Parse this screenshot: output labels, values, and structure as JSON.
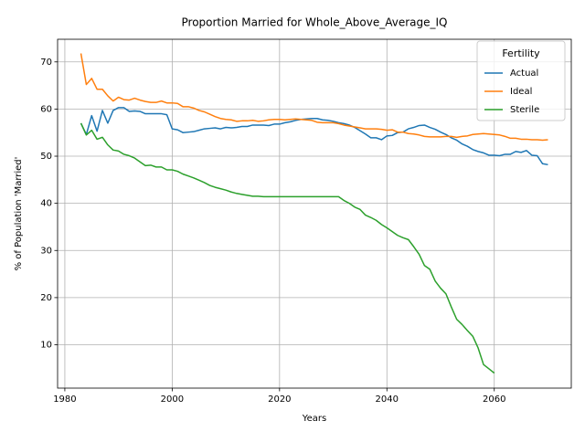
{
  "chart_data": {
    "type": "line",
    "title": "Proportion Married for Whole_Above_Average_IQ",
    "xlabel": "Years",
    "ylabel": "% of Population 'Married'",
    "legend_title": "Fertility",
    "legend": "upper right",
    "grid": true,
    "xlim": [
      1978.65,
      2074.35
    ],
    "xticks": [
      1980,
      2000,
      2020,
      2040,
      2060
    ],
    "ylim": [
      0.8,
      74.8
    ],
    "yticks": [
      10,
      20,
      30,
      40,
      50,
      60,
      70
    ],
    "x": [
      1983,
      1984,
      1985,
      1986,
      1987,
      1988,
      1989,
      1990,
      1991,
      1992,
      1993,
      1994,
      1995,
      1996,
      1997,
      1998,
      1999,
      2000,
      2001,
      2002,
      2003,
      2004,
      2005,
      2006,
      2007,
      2008,
      2009,
      2010,
      2011,
      2012,
      2013,
      2014,
      2015,
      2016,
      2017,
      2018,
      2019,
      2020,
      2021,
      2022,
      2023,
      2024,
      2025,
      2026,
      2027,
      2028,
      2029,
      2030,
      2031,
      2032,
      2033,
      2034,
      2035,
      2036,
      2037,
      2038,
      2039,
      2040,
      2041,
      2042,
      2043,
      2044,
      2045,
      2046,
      2047,
      2048,
      2049,
      2050,
      2051,
      2052,
      2053,
      2054,
      2055,
      2056,
      2057,
      2058,
      2059,
      2060,
      2061,
      2062,
      2063,
      2064,
      2065,
      2066,
      2067,
      2068,
      2069,
      2070
    ],
    "series": [
      {
        "name": "Actual",
        "color": "#1f77b4",
        "values": [
          57,
          54.6,
          58.6,
          55.3,
          59.7,
          57.0,
          59.7,
          60.3,
          60.3,
          59.5,
          59.6,
          59.5,
          59.0,
          59.0,
          59.0,
          59.0,
          58.8,
          55.8,
          55.6,
          55.0,
          55.1,
          55.2,
          55.5,
          55.8,
          55.9,
          56.0,
          55.8,
          56.1,
          56.0,
          56.1,
          56.3,
          56.3,
          56.6,
          56.6,
          56.6,
          56.5,
          56.8,
          56.8,
          57.1,
          57.3,
          57.6,
          57.8,
          57.9,
          58.0,
          58.0,
          57.7,
          57.6,
          57.4,
          57.1,
          56.9,
          56.6,
          56.1,
          55.4,
          54.7,
          53.9,
          53.9,
          53.5,
          54.3,
          54.4,
          55.0,
          55.1,
          55.8,
          56.1,
          56.5,
          56.6,
          56.1,
          55.7,
          55.1,
          54.6,
          53.9,
          53.4,
          52.6,
          52.1,
          51.4,
          51.0,
          50.7,
          50.2,
          50.2,
          50.1,
          50.4,
          50.4,
          51.0,
          50.8,
          51.2,
          50.2,
          50.1,
          48.4,
          48.2
        ]
      },
      {
        "name": "Ideal",
        "color": "#ff7f0e",
        "values": [
          71.8,
          65.2,
          66.5,
          64.2,
          64.2,
          62.8,
          61.7,
          62.5,
          62.0,
          61.9,
          62.3,
          61.9,
          61.6,
          61.4,
          61.4,
          61.7,
          61.3,
          61.3,
          61.2,
          60.5,
          60.5,
          60.2,
          59.7,
          59.4,
          58.9,
          58.4,
          58.0,
          57.8,
          57.7,
          57.4,
          57.5,
          57.5,
          57.6,
          57.4,
          57.5,
          57.7,
          57.8,
          57.8,
          57.7,
          57.8,
          57.9,
          57.8,
          57.7,
          57.6,
          57.2,
          57.1,
          57.1,
          57.1,
          56.9,
          56.6,
          56.4,
          56.2,
          56.0,
          55.8,
          55.8,
          55.8,
          55.7,
          55.5,
          55.6,
          55.1,
          55.1,
          54.8,
          54.7,
          54.5,
          54.2,
          54.1,
          54.1,
          54.1,
          54.2,
          54.2,
          54.0,
          54.2,
          54.3,
          54.6,
          54.7,
          54.8,
          54.7,
          54.6,
          54.5,
          54.2,
          53.8,
          53.8,
          53.6,
          53.6,
          53.5,
          53.5,
          53.4,
          53.5
        ]
      },
      {
        "name": "Sterile",
        "color": "#2ca02c",
        "values": [
          57.0,
          54.5,
          55.5,
          53.6,
          54.0,
          52.4,
          51.3,
          51.1,
          50.4,
          50.1,
          49.6,
          48.8,
          48.0,
          48.1,
          47.7,
          47.7,
          47.1,
          47.1,
          46.8,
          46.2,
          45.8,
          45.4,
          44.9,
          44.4,
          43.8,
          43.4,
          43.1,
          42.8,
          42.4,
          42.1,
          41.9,
          41.7,
          41.5,
          41.5,
          41.4,
          41.4,
          41.4,
          41.4,
          41.4,
          41.4,
          41.4,
          41.4,
          41.4,
          41.4,
          41.4,
          41.4,
          41.4,
          41.4,
          41.4,
          40.6,
          40.0,
          39.2,
          38.7,
          37.5,
          37.0,
          36.4,
          35.5,
          34.8,
          34.0,
          33.2,
          32.7,
          32.3,
          30.8,
          29.2,
          26.8,
          26.0,
          23.5,
          22.0,
          20.8,
          18.0,
          15.4,
          14.3,
          13.0,
          11.8,
          9.3,
          5.8,
          4.9,
          4.0,
          null,
          null,
          null,
          null,
          null,
          null,
          null,
          null,
          null,
          null
        ]
      }
    ]
  }
}
